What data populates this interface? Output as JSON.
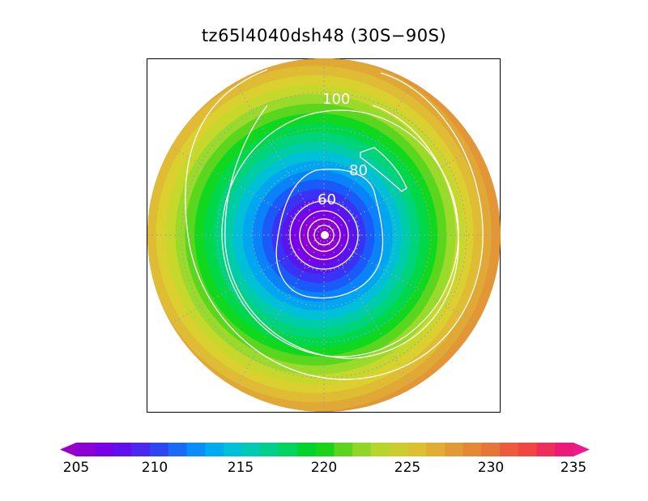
{
  "title": "tz65l4040dsh48 (30S−90S)",
  "colors": {
    "map_fill": [
      "#8c00d4",
      "#7a00e8",
      "#5a14ee",
      "#3a32f4",
      "#1a5af8",
      "#0a82fa",
      "#00a6f0",
      "#00c0d8",
      "#00cca8",
      "#00d47a",
      "#00d84a",
      "#10d81e",
      "#5ad61e",
      "#9ada2a",
      "#c6d82c",
      "#dad030",
      "#e0bc34",
      "#e0a834",
      "#e29636",
      "#e48436"
    ],
    "cbar": [
      "#8c00d4",
      "#7a00e8",
      "#6010ee",
      "#4a28f0",
      "#2c46f6",
      "#1a6af8",
      "#0a8cfa",
      "#00aaf0",
      "#00c0d8",
      "#00cab4",
      "#00d08a",
      "#00d45c",
      "#00d42c",
      "#1ad418",
      "#5cd41e",
      "#90d628",
      "#b6d62c",
      "#cccc2e",
      "#dcc032",
      "#e0ae34",
      "#e29a36",
      "#e48836",
      "#e67638",
      "#ec5c3c",
      "#f24642",
      "#f02e5a",
      "#ec1a78"
    ]
  },
  "contours": [
    {
      "label": "100"
    },
    {
      "label": "80"
    },
    {
      "label": "60"
    }
  ],
  "colorbar": {
    "tick_labels": [
      "205",
      "210",
      "215",
      "220",
      "225",
      "230",
      "235"
    ],
    "min": 205,
    "max": 235
  }
}
